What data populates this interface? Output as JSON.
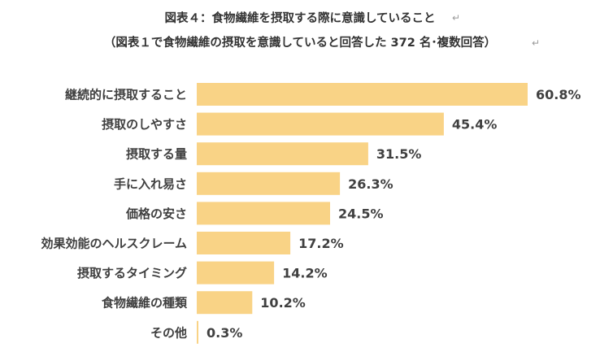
{
  "chart_data": {
    "type": "bar",
    "orientation": "horizontal",
    "title": "図表４：食物繊維を摂取する際に意識していること",
    "subtitle": "（図表１で食物繊維の摂取を意識していると回答した 372 名･複数回答）",
    "paragraph_mark": "↵",
    "categories": [
      "継続的に摂取すること",
      "摂取のしやすさ",
      "摂取する量",
      "手に入れ易さ",
      "価格の安さ",
      "効果効能のヘルスクレーム",
      "摂取するタイミング",
      "食物繊維の種類",
      "その他"
    ],
    "values": [
      60.8,
      45.4,
      31.5,
      26.3,
      24.5,
      17.2,
      14.2,
      10.2,
      0.3
    ],
    "value_labels": [
      "60.8%",
      "45.4%",
      "31.5%",
      "26.3%",
      "24.5%",
      "17.2%",
      "14.2%",
      "10.2%",
      "0.3%"
    ],
    "unit": "%",
    "xlim": [
      0,
      60.8
    ],
    "grid": false,
    "legend": "none",
    "bar_color": "#F9D386",
    "text_color": "#404040"
  }
}
